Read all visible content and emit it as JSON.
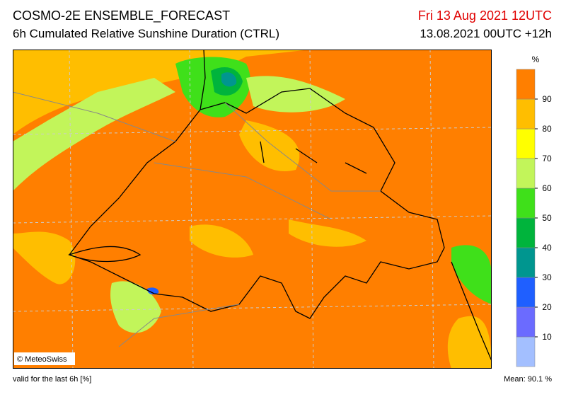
{
  "header": {
    "title": "COSMO-2E ENSEMBLE_FORECAST",
    "subtitle": "6h Cumulated Relative Sunshine Duration (CTRL)",
    "valid_time": "Fri 13 Aug 2021 12UTC",
    "run": "13.08.2021 00UTC +12h"
  },
  "map": {
    "credit": "© MeteoSwiss"
  },
  "legend": {
    "unit": "%",
    "colors": [
      "#a3bfff",
      "#6b6bff",
      "#1f5fff",
      "#00968f",
      "#00b43c",
      "#3fe01a",
      "#c2f55a",
      "#ffff00",
      "#ffbe00",
      "#ff7f00"
    ],
    "ticks": [
      10,
      20,
      30,
      40,
      50,
      60,
      70,
      80,
      90
    ]
  },
  "footer": {
    "note": "valid for the last 6h [%]",
    "mean": "Mean: 90.1 %"
  }
}
